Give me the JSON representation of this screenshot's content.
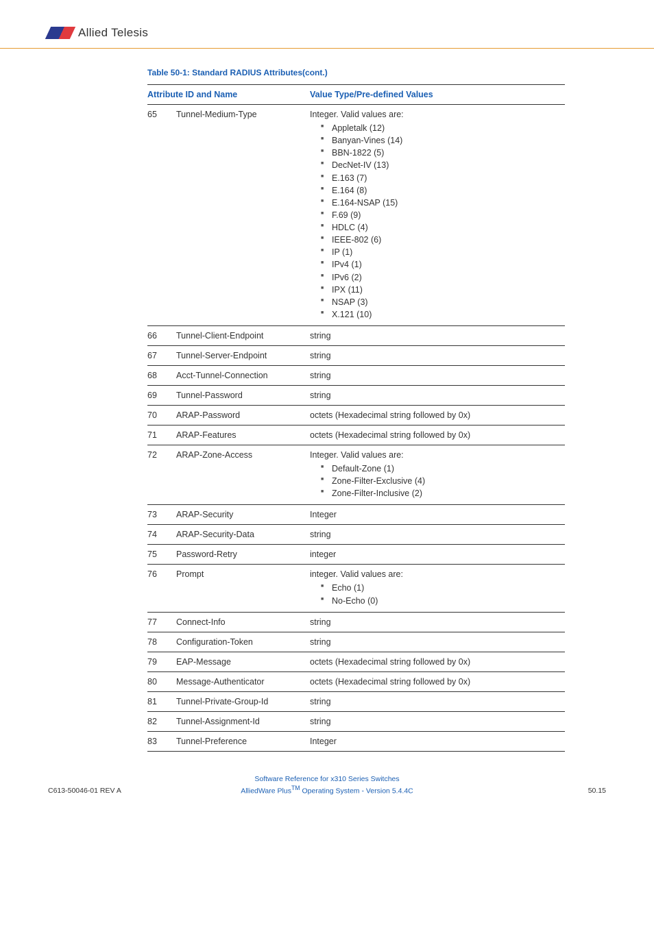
{
  "logo_text": "Allied Telesis",
  "table_title": "Table 50-1: Standard RADIUS Attributes(cont.)",
  "header": {
    "col1": "Attribute ID and Name",
    "col2": "Value Type/Pre-defined Values"
  },
  "rows": [
    {
      "id": "65",
      "name": "Tunnel-Medium-Type",
      "value_intro": "Integer. Valid values are:",
      "value_list": [
        "Appletalk (12)",
        "Banyan-Vines (14)",
        "BBN-1822 (5)",
        "DecNet-IV (13)",
        "E.163 (7)",
        "E.164 (8)",
        "E.164-NSAP (15)",
        "F.69 (9)",
        "HDLC (4)",
        "IEEE-802 (6)",
        "IP (1)",
        "IPv4 (1)",
        "IPv6 (2)",
        "IPX (11)",
        "NSAP (3)",
        "X.121 (10)"
      ]
    },
    {
      "id": "66",
      "name": "Tunnel-Client-Endpoint",
      "value_simple": "string"
    },
    {
      "id": "67",
      "name": "Tunnel-Server-Endpoint",
      "value_simple": "string"
    },
    {
      "id": "68",
      "name": "Acct-Tunnel-Connection",
      "value_simple": "string"
    },
    {
      "id": "69",
      "name": "Tunnel-Password",
      "value_simple": "string"
    },
    {
      "id": "70",
      "name": "ARAP-Password",
      "value_simple": "octets (Hexadecimal string followed by 0x)"
    },
    {
      "id": "71",
      "name": "ARAP-Features",
      "value_simple": "octets (Hexadecimal string followed by 0x)"
    },
    {
      "id": "72",
      "name": "ARAP-Zone-Access",
      "value_intro": "Integer. Valid values are:",
      "value_list": [
        "Default-Zone (1)",
        "Zone-Filter-Exclusive (4)",
        "Zone-Filter-Inclusive (2)"
      ]
    },
    {
      "id": "73",
      "name": "ARAP-Security",
      "value_simple": "Integer"
    },
    {
      "id": "74",
      "name": "ARAP-Security-Data",
      "value_simple": "string"
    },
    {
      "id": "75",
      "name": "Password-Retry",
      "value_simple": "integer"
    },
    {
      "id": "76",
      "name": "Prompt",
      "value_intro": "integer. Valid values are:",
      "value_list": [
        "Echo (1)",
        "No-Echo (0)"
      ]
    },
    {
      "id": "77",
      "name": "Connect-Info",
      "value_simple": "string"
    },
    {
      "id": "78",
      "name": "Configuration-Token",
      "value_simple": "string"
    },
    {
      "id": "79",
      "name": "EAP-Message",
      "value_simple": "octets (Hexadecimal string followed by 0x)"
    },
    {
      "id": "80",
      "name": "Message-Authenticator",
      "value_simple": "octets (Hexadecimal string followed by 0x)"
    },
    {
      "id": "81",
      "name": "Tunnel-Private-Group-Id",
      "value_simple": "string"
    },
    {
      "id": "82",
      "name": "Tunnel-Assignment-Id",
      "value_simple": "string"
    },
    {
      "id": "83",
      "name": "Tunnel-Preference",
      "value_simple": "Integer"
    }
  ],
  "footer": {
    "line1": "Software Reference for x310 Series Switches",
    "line2a": "AlliedWare Plus",
    "line2tm": "TM",
    "line2b": " Operating System - Version 5.4.4C",
    "rev": "C613-50046-01 REV A",
    "page": "50.15"
  },
  "colors": {
    "heading_blue": "#1b5fb3",
    "border_orange": "#e69a2e",
    "text": "#333333",
    "row_border": "#333333",
    "bullet": "#555555"
  }
}
